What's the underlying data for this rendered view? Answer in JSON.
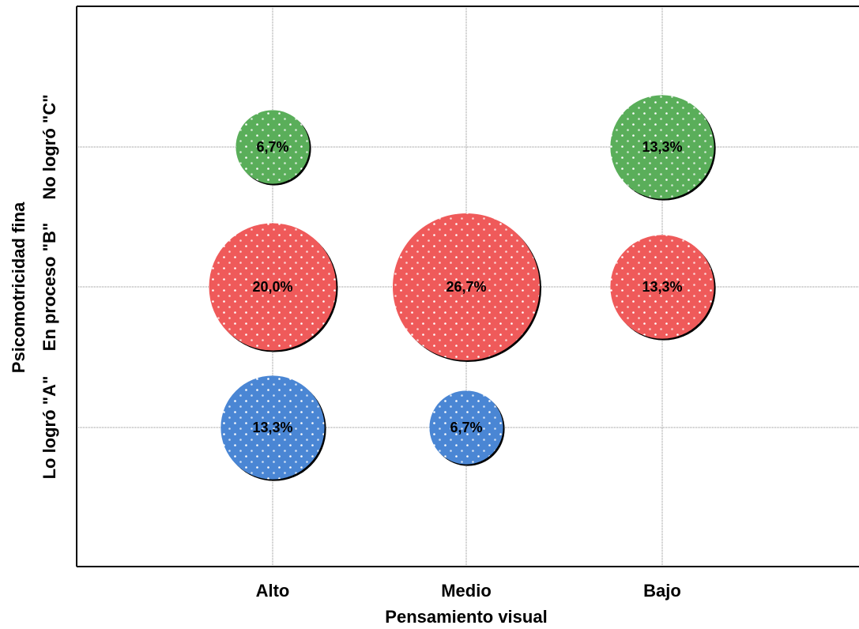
{
  "chart_data": {
    "type": "bubble",
    "xlabel": "Pensamiento visual",
    "ylabel": "Psicomotricidad fina",
    "x_categories": [
      "Alto",
      "Medio",
      "Bajo"
    ],
    "y_categories": [
      "Lo logró \"A\"",
      "En proceso \"B\"",
      "No logró \"C\""
    ],
    "grid": true,
    "series": [
      {
        "name": "Lo logró \"A\"",
        "color": "#4a86d4",
        "points": [
          {
            "x": "Alto",
            "y": "Lo logró \"A\"",
            "value": 13.3,
            "label": "13,3%"
          },
          {
            "x": "Medio",
            "y": "Lo logró \"A\"",
            "value": 6.7,
            "label": "6,7%"
          }
        ]
      },
      {
        "name": "En proceso \"B\"",
        "color": "#ef5a5a",
        "points": [
          {
            "x": "Alto",
            "y": "En proceso \"B\"",
            "value": 20.0,
            "label": "20,0%"
          },
          {
            "x": "Medio",
            "y": "En proceso \"B\"",
            "value": 26.7,
            "label": "26,7%"
          },
          {
            "x": "Bajo",
            "y": "En proceso \"B\"",
            "value": 13.3,
            "label": "13,3%"
          }
        ]
      },
      {
        "name": "No logró \"C\"",
        "color": "#5aae5a",
        "points": [
          {
            "x": "Alto",
            "y": "No logró \"C\"",
            "value": 6.7,
            "label": "6,7%"
          },
          {
            "x": "Bajo",
            "y": "No logró \"C\"",
            "value": 13.3,
            "label": "13,3%"
          }
        ]
      }
    ]
  }
}
